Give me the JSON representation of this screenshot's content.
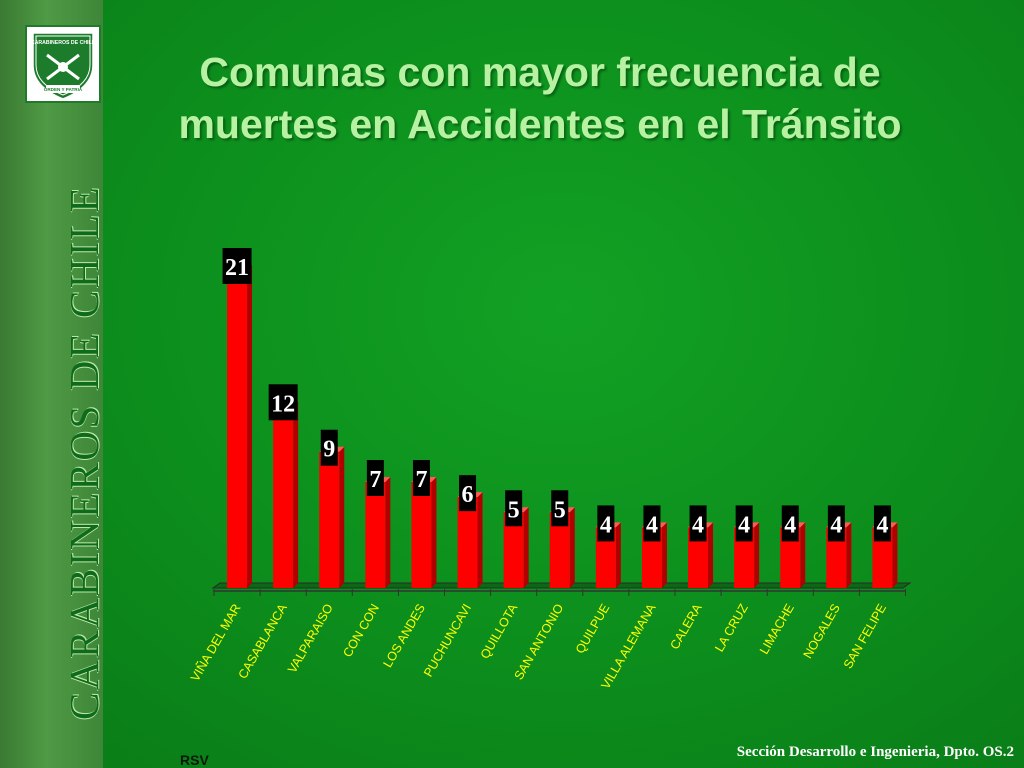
{
  "sidebar": {
    "brand": "CARABINEROS DE CHILE"
  },
  "logo": {
    "top_text": "CARABINEROS DE CHILE",
    "motto": "ORDEN Y PATRIA",
    "colors": {
      "border": "#1f7a2a",
      "shield": "#1d7c2c",
      "background": "#ffffff"
    }
  },
  "title": {
    "line1": "Comunas con mayor frecuencia de",
    "line2": "muertes en Accidentes en el Tránsito"
  },
  "chart_data": {
    "type": "bar",
    "categories": [
      "VIÑA DEL MAR",
      "CASABLANCA",
      "VALPARAISO",
      "CON CON",
      "LOS ANDES",
      "PUCHUNCAVI",
      "QUILLOTA",
      "SAN ANTONIO",
      "QUILPUE",
      "VILLA ALEMANA",
      "CALERA",
      "LA CRUZ",
      "LIMACHE",
      "NOGALES",
      "SAN FELIPE"
    ],
    "values": [
      21,
      12,
      9,
      7,
      7,
      6,
      5,
      5,
      4,
      4,
      4,
      4,
      4,
      4,
      4
    ],
    "ylim": [
      0,
      21
    ],
    "grid": false,
    "legend": false,
    "data_labels": true,
    "colors": {
      "bar": "#ff0000",
      "bar_side": "#b00000",
      "bar_top": "#ff5a5a",
      "label_bg": "#000000",
      "label_text": "#ffffff",
      "category_text": "#ffff00"
    }
  },
  "footer": {
    "author": "RSV",
    "credit": "Sección Desarrollo e Ingenieria, Dpto. OS.2"
  }
}
